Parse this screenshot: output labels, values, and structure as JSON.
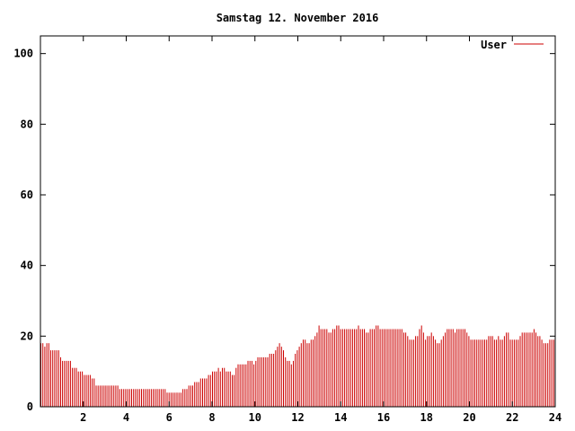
{
  "chart_data": {
    "type": "bar",
    "title": "Samstag 12. November 2016",
    "xlabel": "",
    "ylabel": "",
    "xlim": [
      0,
      24
    ],
    "ylim": [
      0,
      105
    ],
    "x_ticks": [
      2,
      4,
      6,
      8,
      10,
      12,
      14,
      16,
      18,
      20,
      22,
      24
    ],
    "y_ticks": [
      0,
      20,
      40,
      60,
      80,
      100
    ],
    "grid": false,
    "legend_position": "top-right",
    "series": [
      {
        "name": "User",
        "color": "#cc0000",
        "sample_interval_hours": 0.0833,
        "values": [
          18,
          18,
          17,
          18,
          18,
          16,
          16,
          16,
          16,
          16,
          14,
          13,
          13,
          13,
          13,
          13,
          11,
          11,
          11,
          10,
          10,
          10,
          9,
          9,
          9,
          9,
          8,
          8,
          6,
          6,
          6,
          6,
          6,
          6,
          6,
          6,
          6,
          6,
          6,
          6,
          5,
          5,
          5,
          5,
          5,
          5,
          5,
          5,
          5,
          5,
          5,
          5,
          5,
          5,
          5,
          5,
          5,
          5,
          5,
          5,
          5,
          5,
          5,
          5,
          4,
          4,
          4,
          4,
          4,
          4,
          4,
          4,
          5,
          5,
          5,
          6,
          6,
          6,
          7,
          7,
          7,
          8,
          8,
          8,
          8,
          9,
          9,
          10,
          10,
          10,
          11,
          10,
          11,
          11,
          10,
          10,
          10,
          9,
          9,
          11,
          12,
          12,
          12,
          12,
          12,
          13,
          13,
          13,
          12,
          13,
          14,
          14,
          14,
          14,
          14,
          14,
          15,
          15,
          15,
          16,
          17,
          18,
          17,
          16,
          14,
          13,
          13,
          12,
          13,
          15,
          16,
          17,
          18,
          19,
          19,
          18,
          18,
          19,
          19,
          20,
          21,
          23,
          22,
          22,
          22,
          22,
          21,
          21,
          22,
          22,
          23,
          23,
          22,
          22,
          22,
          22,
          22,
          22,
          22,
          22,
          22,
          23,
          22,
          22,
          22,
          21,
          21,
          22,
          22,
          22,
          23,
          23,
          22,
          22,
          22,
          22,
          22,
          22,
          22,
          22,
          22,
          22,
          22,
          22,
          21,
          21,
          20,
          19,
          19,
          19,
          20,
          20,
          22,
          23,
          21,
          19,
          20,
          20,
          21,
          20,
          19,
          18,
          18,
          19,
          20,
          21,
          22,
          22,
          22,
          22,
          21,
          22,
          22,
          22,
          22,
          22,
          21,
          20,
          19,
          19,
          19,
          19,
          19,
          19,
          19,
          19,
          19,
          20,
          20,
          20,
          19,
          19,
          20,
          19,
          19,
          20,
          21,
          21,
          19,
          19,
          19,
          19,
          19,
          20,
          21,
          21,
          21,
          21,
          21,
          21,
          22,
          21,
          20,
          20,
          19,
          18,
          18,
          18,
          19,
          19,
          19
        ]
      }
    ]
  }
}
